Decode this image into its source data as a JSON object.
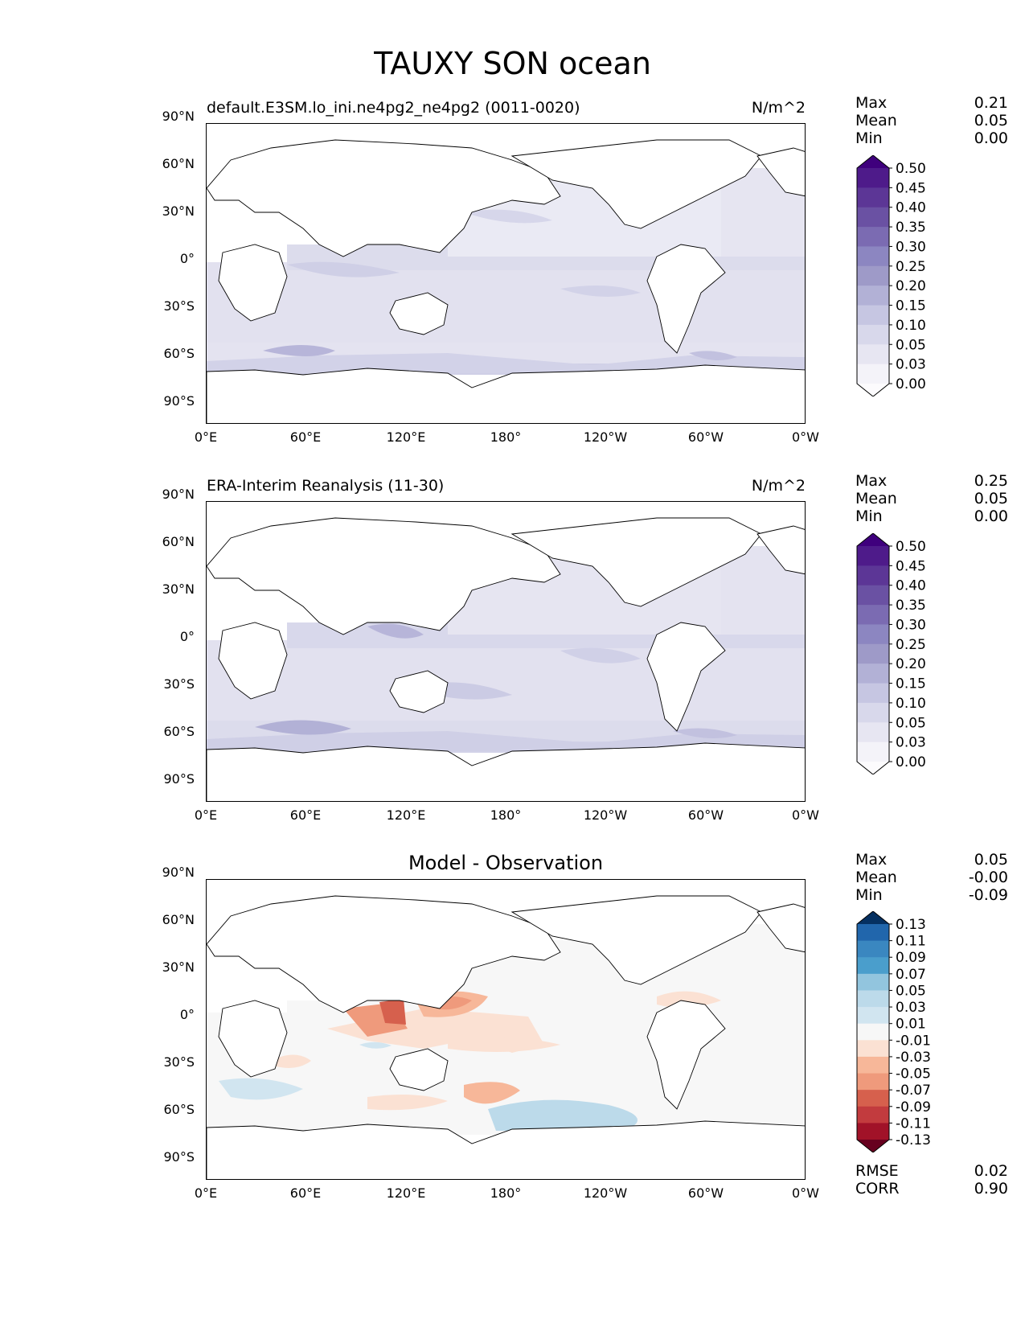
{
  "title": "TAUXY SON ocean",
  "x_ticks": [
    "0°E",
    "60°E",
    "120°E",
    "180°",
    "120°W",
    "60°W",
    "0°W"
  ],
  "y_ticks": [
    "90°N",
    "60°N",
    "30°N",
    "0°",
    "30°S",
    "60°S",
    "90°S"
  ],
  "panels": [
    {
      "left_title": "default.E3SM.lo_ini.ne4pg2_ne4pg2 (0011-0020)",
      "right_title": "N/m^2",
      "center_title": "",
      "stats": [
        {
          "name": "Max",
          "value": "0.21"
        },
        {
          "name": "Mean",
          "value": "0.05"
        },
        {
          "name": "Min",
          "value": "0.00"
        }
      ],
      "colorbar_levels": [
        "0.50",
        "0.45",
        "0.40",
        "0.35",
        "0.30",
        "0.25",
        "0.20",
        "0.15",
        "0.10",
        "0.05",
        "0.03",
        "0.00"
      ],
      "colorbar_colors": [
        "#3f007d",
        "#4e1b8a",
        "#5c3696",
        "#6a51a3",
        "#7b6bb2",
        "#8c86c1",
        "#9e9ac8",
        "#b2b1d6",
        "#c6c6e2",
        "#d8d8eb",
        "#e7e6f2",
        "#f4f3f9",
        "#fcfbfd"
      ],
      "colormap": "purples"
    },
    {
      "left_title": "ERA-Interim Reanalysis (11-30)",
      "right_title": "N/m^2",
      "center_title": "",
      "stats": [
        {
          "name": "Max",
          "value": "0.25"
        },
        {
          "name": "Mean",
          "value": "0.05"
        },
        {
          "name": "Min",
          "value": "0.00"
        }
      ],
      "colorbar_levels": [
        "0.50",
        "0.45",
        "0.40",
        "0.35",
        "0.30",
        "0.25",
        "0.20",
        "0.15",
        "0.10",
        "0.05",
        "0.03",
        "0.00"
      ],
      "colorbar_colors": [
        "#3f007d",
        "#4e1b8a",
        "#5c3696",
        "#6a51a3",
        "#7b6bb2",
        "#8c86c1",
        "#9e9ac8",
        "#b2b1d6",
        "#c6c6e2",
        "#d8d8eb",
        "#e7e6f2",
        "#f4f3f9",
        "#fcfbfd"
      ],
      "colormap": "purples"
    },
    {
      "left_title": "",
      "right_title": "",
      "center_title": "Model - Observation",
      "stats": [
        {
          "name": "Max",
          "value": "0.05"
        },
        {
          "name": "Mean",
          "value": "-0.00"
        },
        {
          "name": "Min",
          "value": "-0.09"
        }
      ],
      "colorbar_levels": [
        "0.13",
        "0.11",
        "0.09",
        "0.07",
        "0.05",
        "0.03",
        "0.01",
        "-0.01",
        "-0.03",
        "-0.05",
        "-0.07",
        "-0.09",
        "-0.11",
        "-0.13"
      ],
      "colorbar_colors": [
        "#053061",
        "#2166ac",
        "#3a87c0",
        "#4a9ecc",
        "#92c5de",
        "#bcdaea",
        "#d1e5f0",
        "#f7f7f7",
        "#fbe1d3",
        "#f7b799",
        "#ef9a7c",
        "#d6604d",
        "#c23b3e",
        "#a11228",
        "#67001f"
      ],
      "colormap": "RdBu",
      "metrics": [
        {
          "name": "RMSE",
          "value": "0.02"
        },
        {
          "name": "CORR",
          "value": "0.90"
        }
      ]
    }
  ]
}
